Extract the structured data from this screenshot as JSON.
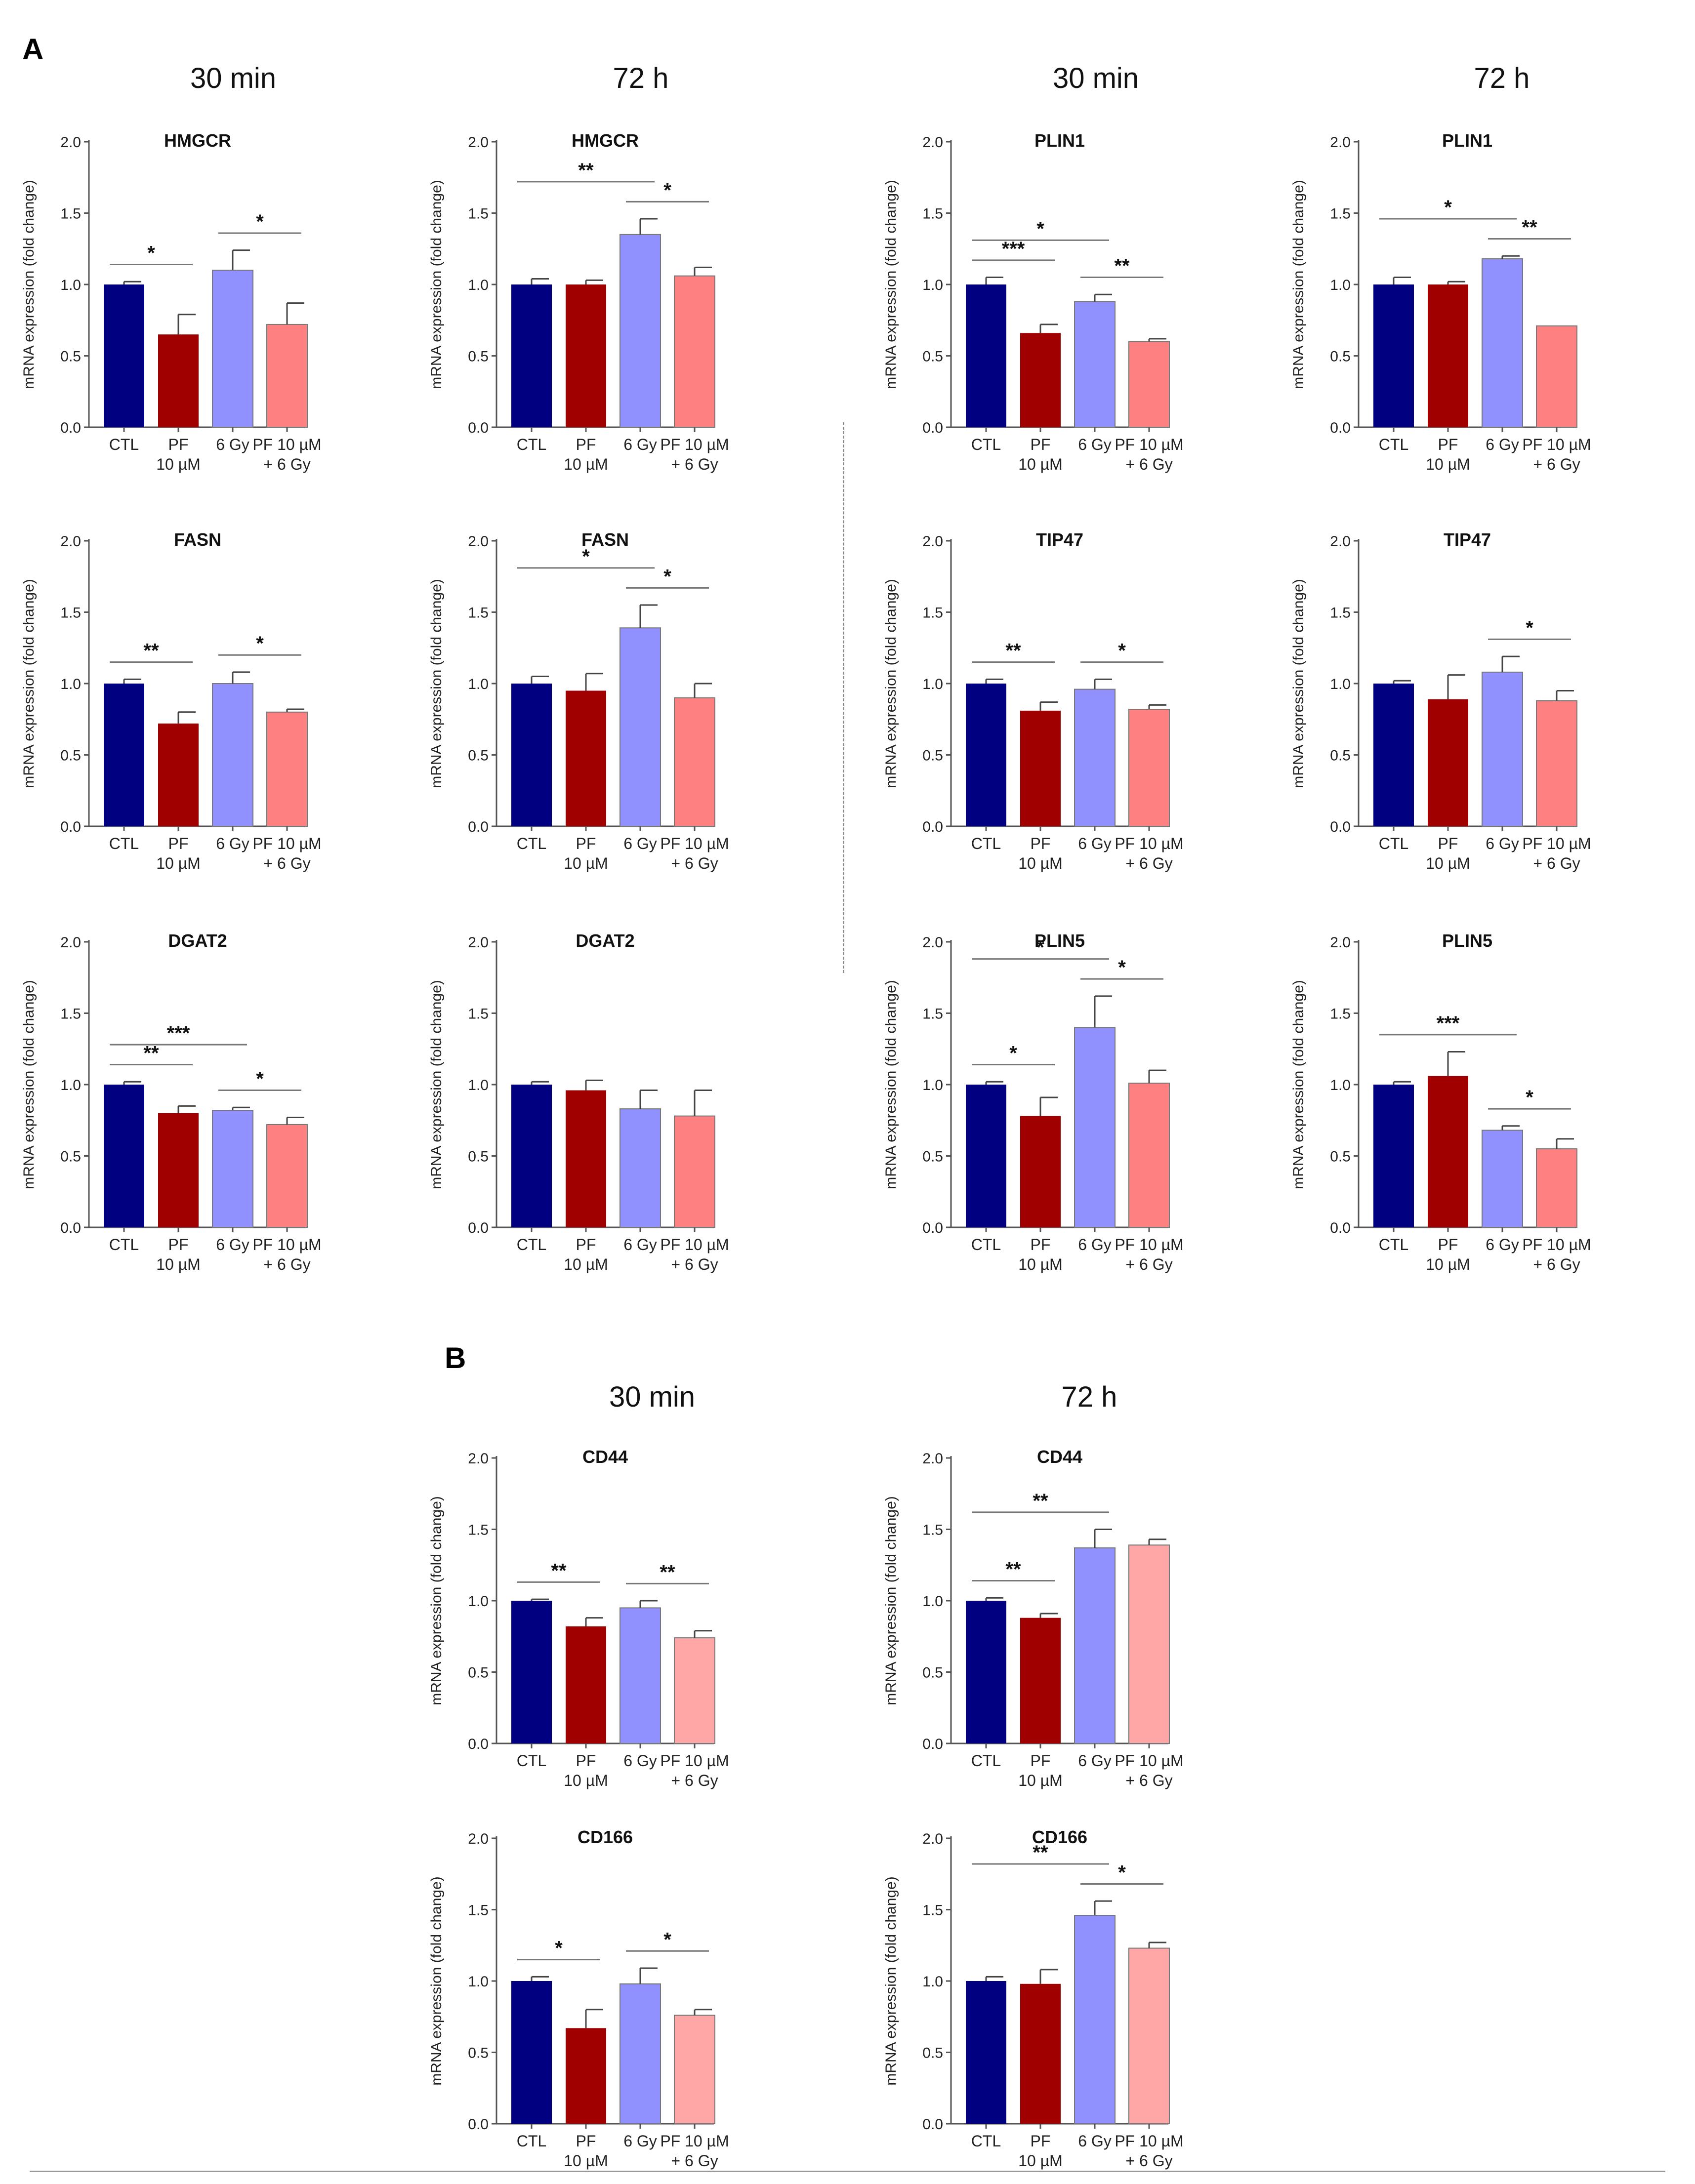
{
  "panel_labels": {
    "a": "A",
    "b": "B"
  },
  "column_headers": {
    "a": [
      "30 min",
      "72 h",
      "30 min",
      "72 h"
    ],
    "b": [
      "30 min",
      "72 h"
    ]
  },
  "colors": {
    "CTL": "#000080",
    "PF 10 µM": "#a00000",
    "6 Gy": "#9090ff",
    "PF 10 µM + 6 Gy": "#ff8080",
    "PF 10 µM + 6 Gy (B)": "#ffa6a6"
  },
  "chart_data": [
    {
      "type": "bar",
      "panel": "A",
      "timepoint": "30 min",
      "title": "HMGCR",
      "ylabel": "mRNA expression (fold change)",
      "ylim": [
        0,
        2
      ],
      "yticks": [
        "0.0",
        "0.5",
        "1.0",
        "1.5",
        "2.0"
      ],
      "categories": [
        "CTL",
        "PF\n10 µM",
        "6 Gy",
        "PF 10 µM\n+ 6 Gy"
      ],
      "values": [
        1.0,
        0.65,
        1.1,
        0.72
      ],
      "errors": [
        0.02,
        0.14,
        0.14,
        0.15
      ],
      "significance": [
        {
          "from": 0,
          "to": 1,
          "label": "*"
        },
        {
          "from": 2,
          "to": 3,
          "label": "*"
        }
      ]
    },
    {
      "type": "bar",
      "panel": "A",
      "timepoint": "72 h",
      "title": "HMGCR",
      "ylabel": "mRNA expression (fold change)",
      "ylim": [
        0,
        2
      ],
      "yticks": [
        "0.0",
        "0.5",
        "1.0",
        "1.5",
        "2.0"
      ],
      "categories": [
        "CTL",
        "PF\n10 µM",
        "6 Gy",
        "PF 10 µM\n+ 6 Gy"
      ],
      "values": [
        1.0,
        1.0,
        1.35,
        1.06
      ],
      "errors": [
        0.04,
        0.03,
        0.11,
        0.06
      ],
      "significance": [
        {
          "from": 0,
          "to": 2,
          "label": "**"
        },
        {
          "from": 2,
          "to": 3,
          "label": "*"
        }
      ]
    },
    {
      "type": "bar",
      "panel": "A",
      "timepoint": "30 min",
      "title": "PLIN1",
      "ylabel": "mRNA expression (fold change)",
      "ylim": [
        0,
        2
      ],
      "yticks": [
        "0.0",
        "0.5",
        "1.0",
        "1.5",
        "2.0"
      ],
      "categories": [
        "CTL",
        "PF\n10 µM",
        "6 Gy",
        "PF 10 µM\n+ 6 Gy"
      ],
      "values": [
        1.0,
        0.66,
        0.88,
        0.6
      ],
      "errors": [
        0.05,
        0.06,
        0.05,
        0.02
      ],
      "significance": [
        {
          "from": 0,
          "to": 1,
          "label": "***"
        },
        {
          "from": 0,
          "to": 2,
          "label": "*"
        },
        {
          "from": 2,
          "to": 3,
          "label": "**"
        }
      ]
    },
    {
      "type": "bar",
      "panel": "A",
      "timepoint": "72 h",
      "title": "PLIN1",
      "ylabel": "mRNA expression (fold change)",
      "ylim": [
        0,
        2
      ],
      "yticks": [
        "0.0",
        "0.5",
        "1.0",
        "1.5",
        "2.0"
      ],
      "categories": [
        "CTL",
        "PF\n10 µM",
        "6 Gy",
        "PF 10 µM\n+ 6 Gy"
      ],
      "values": [
        1.0,
        1.0,
        1.18,
        0.71
      ],
      "errors": [
        0.05,
        0.02,
        0.02,
        0.0
      ],
      "significance": [
        {
          "from": 0,
          "to": 2,
          "label": "*"
        },
        {
          "from": 2,
          "to": 3,
          "label": "**"
        }
      ]
    },
    {
      "type": "bar",
      "panel": "A",
      "timepoint": "30 min",
      "title": "FASN",
      "ylabel": "mRNA expression (fold change)",
      "ylim": [
        0,
        2
      ],
      "yticks": [
        "0.0",
        "0.5",
        "1.0",
        "1.5",
        "2.0"
      ],
      "categories": [
        "CTL",
        "PF\n10 µM",
        "6 Gy",
        "PF 10 µM\n+ 6 Gy"
      ],
      "values": [
        1.0,
        0.72,
        1.0,
        0.8
      ],
      "errors": [
        0.03,
        0.08,
        0.08,
        0.02
      ],
      "significance": [
        {
          "from": 0,
          "to": 1,
          "label": "**"
        },
        {
          "from": 2,
          "to": 3,
          "label": "*"
        }
      ]
    },
    {
      "type": "bar",
      "panel": "A",
      "timepoint": "72 h",
      "title": "FASN",
      "ylabel": "mRNA expression (fold change)",
      "ylim": [
        0,
        2
      ],
      "yticks": [
        "0.0",
        "0.5",
        "1.0",
        "1.5",
        "2.0"
      ],
      "categories": [
        "CTL",
        "PF\n10 µM",
        "6 Gy",
        "PF 10 µM\n+ 6 Gy"
      ],
      "values": [
        1.0,
        0.95,
        1.39,
        0.9
      ],
      "errors": [
        0.05,
        0.12,
        0.16,
        0.1
      ],
      "significance": [
        {
          "from": 0,
          "to": 2,
          "label": "*"
        },
        {
          "from": 2,
          "to": 3,
          "label": "*"
        }
      ]
    },
    {
      "type": "bar",
      "panel": "A",
      "timepoint": "30 min",
      "title": "TIP47",
      "ylabel": "mRNA expression (fold change)",
      "ylim": [
        0,
        2
      ],
      "yticks": [
        "0.0",
        "0.5",
        "1.0",
        "1.5",
        "2.0"
      ],
      "categories": [
        "CTL",
        "PF\n10 µM",
        "6 Gy",
        "PF 10 µM\n+ 6 Gy"
      ],
      "values": [
        1.0,
        0.81,
        0.96,
        0.82
      ],
      "errors": [
        0.03,
        0.06,
        0.07,
        0.03
      ],
      "significance": [
        {
          "from": 0,
          "to": 1,
          "label": "**"
        },
        {
          "from": 2,
          "to": 3,
          "label": "*"
        }
      ]
    },
    {
      "type": "bar",
      "panel": "A",
      "timepoint": "72 h",
      "title": "TIP47",
      "ylabel": "mRNA expression (fold change)",
      "ylim": [
        0,
        2
      ],
      "yticks": [
        "0.0",
        "0.5",
        "1.0",
        "1.5",
        "2.0"
      ],
      "categories": [
        "CTL",
        "PF\n10 µM",
        "6 Gy",
        "PF 10 µM\n+ 6 Gy"
      ],
      "values": [
        1.0,
        0.89,
        1.08,
        0.88
      ],
      "errors": [
        0.02,
        0.17,
        0.11,
        0.07
      ],
      "significance": [
        {
          "from": 2,
          "to": 3,
          "label": "*"
        }
      ]
    },
    {
      "type": "bar",
      "panel": "A",
      "timepoint": "30 min",
      "title": "DGAT2",
      "ylabel": "mRNA expression (fold change)",
      "ylim": [
        0,
        2
      ],
      "yticks": [
        "0.0",
        "0.5",
        "1.0",
        "1.5",
        "2.0"
      ],
      "categories": [
        "CTL",
        "PF\n10 µM",
        "6 Gy",
        "PF 10 µM\n+ 6 Gy"
      ],
      "values": [
        1.0,
        0.8,
        0.82,
        0.72
      ],
      "errors": [
        0.02,
        0.05,
        0.02,
        0.05
      ],
      "significance": [
        {
          "from": 0,
          "to": 1,
          "label": "**"
        },
        {
          "from": 0,
          "to": 2,
          "label": "***"
        },
        {
          "from": 2,
          "to": 3,
          "label": "*"
        }
      ]
    },
    {
      "type": "bar",
      "panel": "A",
      "timepoint": "72 h",
      "title": "DGAT2",
      "ylabel": "mRNA expression (fold change)",
      "ylim": [
        0,
        2
      ],
      "yticks": [
        "0.0",
        "0.5",
        "1.0",
        "1.5",
        "2.0"
      ],
      "categories": [
        "CTL",
        "PF\n10 µM",
        "6 Gy",
        "PF 10 µM\n+ 6 Gy"
      ],
      "values": [
        1.0,
        0.96,
        0.83,
        0.78
      ],
      "errors": [
        0.02,
        0.07,
        0.13,
        0.18
      ],
      "significance": []
    },
    {
      "type": "bar",
      "panel": "A",
      "timepoint": "30 min",
      "title": "PLIN5",
      "ylabel": "mRNA expression (fold change)",
      "ylim": [
        0,
        2
      ],
      "yticks": [
        "0.0",
        "0.5",
        "1.0",
        "1.5",
        "2.0"
      ],
      "categories": [
        "CTL",
        "PF\n10 µM",
        "6 Gy",
        "PF 10 µM\n+ 6 Gy"
      ],
      "values": [
        1.0,
        0.78,
        1.4,
        1.01
      ],
      "errors": [
        0.02,
        0.13,
        0.22,
        0.09
      ],
      "significance": [
        {
          "from": 0,
          "to": 1,
          "label": "*"
        },
        {
          "from": 0,
          "to": 2,
          "label": "*"
        },
        {
          "from": 2,
          "to": 3,
          "label": "*"
        }
      ]
    },
    {
      "type": "bar",
      "panel": "A",
      "timepoint": "72 h",
      "title": "PLIN5",
      "ylabel": "mRNA expression (fold change)",
      "ylim": [
        0,
        2
      ],
      "yticks": [
        "0.0",
        "0.5",
        "1.0",
        "1.5",
        "2.0"
      ],
      "categories": [
        "CTL",
        "PF\n10 µM",
        "6 Gy",
        "PF 10 µM\n+ 6 Gy"
      ],
      "values": [
        1.0,
        1.06,
        0.68,
        0.55
      ],
      "errors": [
        0.02,
        0.17,
        0.03,
        0.07
      ],
      "significance": [
        {
          "from": 0,
          "to": 2,
          "label": "***"
        },
        {
          "from": 2,
          "to": 3,
          "label": "*"
        }
      ]
    },
    {
      "type": "bar",
      "panel": "B",
      "timepoint": "30 min",
      "title": "CD44",
      "ylabel": "mRNA expression (fold change)",
      "ylim": [
        0,
        2
      ],
      "yticks": [
        "0.0",
        "0.5",
        "1.0",
        "1.5",
        "2.0"
      ],
      "categories": [
        "CTL",
        "PF\n10 µM",
        "6 Gy",
        "PF 10 µM\n+ 6 Gy"
      ],
      "values": [
        1.0,
        0.82,
        0.95,
        0.74
      ],
      "errors": [
        0.01,
        0.06,
        0.05,
        0.05
      ],
      "significance": [
        {
          "from": 0,
          "to": 1,
          "label": "**"
        },
        {
          "from": 2,
          "to": 3,
          "label": "**"
        }
      ]
    },
    {
      "type": "bar",
      "panel": "B",
      "timepoint": "72 h",
      "title": "CD44",
      "ylabel": "mRNA expression (fold change)",
      "ylim": [
        0,
        2
      ],
      "yticks": [
        "0.0",
        "0.5",
        "1.0",
        "1.5",
        "2.0"
      ],
      "categories": [
        "CTL",
        "PF\n10 µM",
        "6 Gy",
        "PF 10 µM\n+ 6 Gy"
      ],
      "values": [
        1.0,
        0.88,
        1.37,
        1.39
      ],
      "errors": [
        0.02,
        0.03,
        0.13,
        0.04
      ],
      "significance": [
        {
          "from": 0,
          "to": 1,
          "label": "**"
        },
        {
          "from": 0,
          "to": 2,
          "label": "**"
        }
      ]
    },
    {
      "type": "bar",
      "panel": "B",
      "timepoint": "30 min",
      "title": "CD166",
      "ylabel": "mRNA expression (fold change)",
      "ylim": [
        0,
        2
      ],
      "yticks": [
        "0.0",
        "0.5",
        "1.0",
        "1.5",
        "2.0"
      ],
      "categories": [
        "CTL",
        "PF\n10 µM",
        "6 Gy",
        "PF 10 µM\n+ 6 Gy"
      ],
      "values": [
        1.0,
        0.67,
        0.98,
        0.76
      ],
      "errors": [
        0.03,
        0.13,
        0.11,
        0.04
      ],
      "significance": [
        {
          "from": 0,
          "to": 1,
          "label": "*"
        },
        {
          "from": 2,
          "to": 3,
          "label": "*"
        }
      ]
    },
    {
      "type": "bar",
      "panel": "B",
      "timepoint": "72 h",
      "title": "CD166",
      "ylabel": "mRNA expression (fold change)",
      "ylim": [
        0,
        2
      ],
      "yticks": [
        "0.0",
        "0.5",
        "1.0",
        "1.5",
        "2.0"
      ],
      "categories": [
        "CTL",
        "PF\n10 µM",
        "6 Gy",
        "PF 10 µM\n+ 6 Gy"
      ],
      "values": [
        1.0,
        0.98,
        1.46,
        1.23
      ],
      "errors": [
        0.03,
        0.1,
        0.1,
        0.04
      ],
      "significance": [
        {
          "from": 0,
          "to": 2,
          "label": "**"
        },
        {
          "from": 2,
          "to": 3,
          "label": "*"
        }
      ]
    }
  ]
}
